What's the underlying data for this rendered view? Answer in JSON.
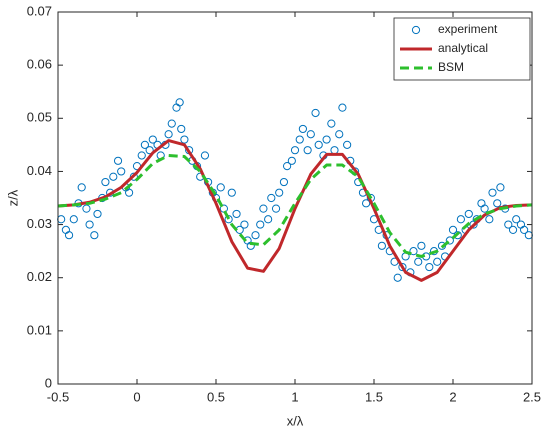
{
  "chart_data": {
    "type": "line",
    "xlabel": "x/λ",
    "ylabel": "z/λ",
    "xlim": [
      -0.5,
      2.5
    ],
    "xticks": [
      -0.5,
      0,
      0.5,
      1,
      1.5,
      2,
      2.5
    ],
    "ylim": [
      0,
      0.07
    ],
    "yticks": [
      0,
      0.01,
      0.02,
      0.03,
      0.04,
      0.05,
      0.06,
      0.07
    ],
    "grid": false,
    "legend": "upper right",
    "series": [
      {
        "name": "experiment",
        "color": "#0072bd",
        "style": "markers",
        "x": [
          -0.48,
          -0.45,
          -0.43,
          -0.4,
          -0.37,
          -0.35,
          -0.32,
          -0.3,
          -0.27,
          -0.25,
          -0.22,
          -0.2,
          -0.17,
          -0.15,
          -0.12,
          -0.1,
          -0.07,
          -0.05,
          -0.02,
          0.0,
          0.03,
          0.05,
          0.08,
          0.1,
          0.13,
          0.15,
          0.18,
          0.2,
          0.22,
          0.25,
          0.27,
          0.28,
          0.3,
          0.33,
          0.35,
          0.38,
          0.4,
          0.43,
          0.45,
          0.48,
          0.5,
          0.53,
          0.55,
          0.58,
          0.6,
          0.63,
          0.65,
          0.68,
          0.7,
          0.72,
          0.75,
          0.78,
          0.8,
          0.83,
          0.85,
          0.88,
          0.9,
          0.93,
          0.95,
          0.98,
          1.0,
          1.03,
          1.05,
          1.08,
          1.1,
          1.13,
          1.15,
          1.18,
          1.2,
          1.23,
          1.25,
          1.28,
          1.3,
          1.33,
          1.35,
          1.38,
          1.4,
          1.43,
          1.45,
          1.48,
          1.5,
          1.53,
          1.55,
          1.58,
          1.6,
          1.63,
          1.65,
          1.68,
          1.7,
          1.73,
          1.75,
          1.78,
          1.8,
          1.83,
          1.85,
          1.88,
          1.9,
          1.93,
          1.95,
          1.98,
          2.0,
          2.03,
          2.05,
          2.08,
          2.1,
          2.13,
          2.15,
          2.18,
          2.2,
          2.23,
          2.25,
          2.28,
          2.3,
          2.33,
          2.35,
          2.38,
          2.4,
          2.43,
          2.45,
          2.48
        ],
        "values": [
          0.031,
          0.029,
          0.028,
          0.031,
          0.034,
          0.037,
          0.033,
          0.03,
          0.028,
          0.032,
          0.035,
          0.038,
          0.036,
          0.039,
          0.042,
          0.04,
          0.037,
          0.036,
          0.039,
          0.041,
          0.043,
          0.045,
          0.044,
          0.046,
          0.045,
          0.043,
          0.045,
          0.047,
          0.049,
          0.052,
          0.053,
          0.048,
          0.046,
          0.044,
          0.042,
          0.041,
          0.039,
          0.043,
          0.038,
          0.036,
          0.035,
          0.037,
          0.033,
          0.031,
          0.036,
          0.032,
          0.029,
          0.03,
          0.027,
          0.026,
          0.028,
          0.03,
          0.033,
          0.031,
          0.035,
          0.033,
          0.036,
          0.038,
          0.041,
          0.042,
          0.044,
          0.046,
          0.048,
          0.044,
          0.047,
          0.051,
          0.045,
          0.043,
          0.046,
          0.049,
          0.044,
          0.047,
          0.052,
          0.045,
          0.042,
          0.04,
          0.038,
          0.036,
          0.034,
          0.035,
          0.031,
          0.029,
          0.026,
          0.028,
          0.025,
          0.023,
          0.02,
          0.022,
          0.024,
          0.021,
          0.025,
          0.023,
          0.026,
          0.024,
          0.022,
          0.025,
          0.023,
          0.026,
          0.024,
          0.027,
          0.029,
          0.028,
          0.031,
          0.029,
          0.032,
          0.03,
          0.031,
          0.034,
          0.033,
          0.031,
          0.036,
          0.034,
          0.037,
          0.033,
          0.03,
          0.029,
          0.031,
          0.03,
          0.029,
          0.028
        ]
      },
      {
        "name": "analytical",
        "color": "#c0282b",
        "style": "solid",
        "x": [
          -0.5,
          -0.4,
          -0.3,
          -0.2,
          -0.1,
          0,
          0.1,
          0.2,
          0.3,
          0.4,
          0.5,
          0.6,
          0.7,
          0.8,
          0.9,
          1.0,
          1.1,
          1.2,
          1.3,
          1.4,
          1.5,
          1.6,
          1.7,
          1.8,
          1.9,
          2.0,
          2.1,
          2.2,
          2.3,
          2.4,
          2.5
        ],
        "values": [
          0.0335,
          0.0337,
          0.0342,
          0.0352,
          0.037,
          0.0398,
          0.0435,
          0.0458,
          0.045,
          0.0405,
          0.034,
          0.0268,
          0.0218,
          0.0212,
          0.0255,
          0.033,
          0.0395,
          0.0432,
          0.0432,
          0.0395,
          0.033,
          0.026,
          0.021,
          0.0195,
          0.021,
          0.025,
          0.029,
          0.0318,
          0.0332,
          0.0336,
          0.0337
        ]
      },
      {
        "name": "BSM",
        "color": "#2dbf2d",
        "style": "dashed",
        "x": [
          -0.5,
          -0.4,
          -0.3,
          -0.2,
          -0.1,
          0,
          0.1,
          0.2,
          0.3,
          0.4,
          0.5,
          0.6,
          0.7,
          0.8,
          0.9,
          1.0,
          1.1,
          1.2,
          1.3,
          1.4,
          1.5,
          1.6,
          1.7,
          1.8,
          1.9,
          2.0,
          2.1,
          2.2,
          2.3,
          2.4,
          2.5
        ],
        "values": [
          0.0335,
          0.0337,
          0.034,
          0.0348,
          0.036,
          0.0385,
          0.0415,
          0.043,
          0.0428,
          0.04,
          0.0355,
          0.03,
          0.0265,
          0.0262,
          0.029,
          0.034,
          0.0385,
          0.0412,
          0.0412,
          0.039,
          0.034,
          0.0285,
          0.0248,
          0.024,
          0.025,
          0.0275,
          0.0302,
          0.032,
          0.033,
          0.0335,
          0.0337
        ]
      }
    ]
  }
}
